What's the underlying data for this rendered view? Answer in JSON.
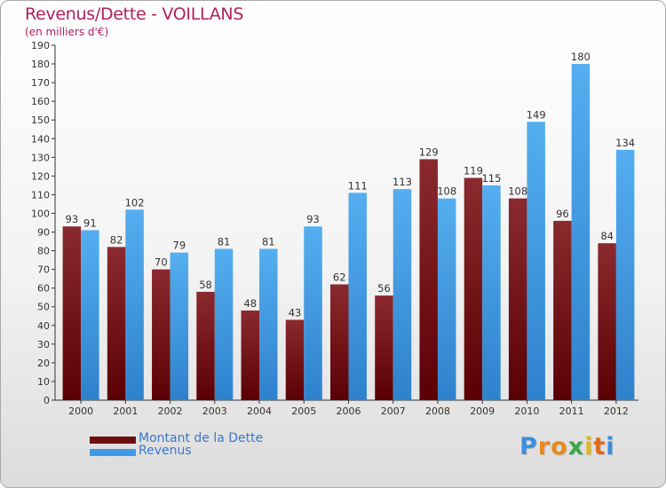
{
  "title": "Revenus/Dette - VOILLANS",
  "subtitle": "(en milliers d'€)",
  "logo": {
    "letters": [
      "P",
      "r",
      "o",
      "x",
      "i",
      "t",
      "i"
    ],
    "colors": [
      "#3a8ee0",
      "#e88a1c",
      "#e88a1c",
      "#3aa64a",
      "#e0b81c",
      "#e06a1c",
      "#3a8ee0"
    ]
  },
  "legend": [
    {
      "label": "Montant de la Dette",
      "color": "#6a0e12"
    },
    {
      "label": "Revenus",
      "color": "#3f9be6"
    }
  ],
  "chart_data": {
    "type": "bar",
    "categories": [
      "2000",
      "2001",
      "2002",
      "2003",
      "2004",
      "2005",
      "2006",
      "2007",
      "2008",
      "2009",
      "2010",
      "2011",
      "2012"
    ],
    "series": [
      {
        "name": "Montant de la Dette",
        "color": "#6a0e12",
        "values": [
          93,
          82,
          70,
          58,
          48,
          43,
          62,
          56,
          129,
          119,
          108,
          96,
          84
        ]
      },
      {
        "name": "Revenus",
        "color": "#3f9be6",
        "values": [
          91,
          102,
          79,
          81,
          81,
          93,
          111,
          113,
          108,
          115,
          149,
          180,
          134
        ]
      }
    ],
    "ylim": [
      0,
      190
    ],
    "ytick_step": 10,
    "grid": false,
    "legend_position": "bottom-left"
  }
}
